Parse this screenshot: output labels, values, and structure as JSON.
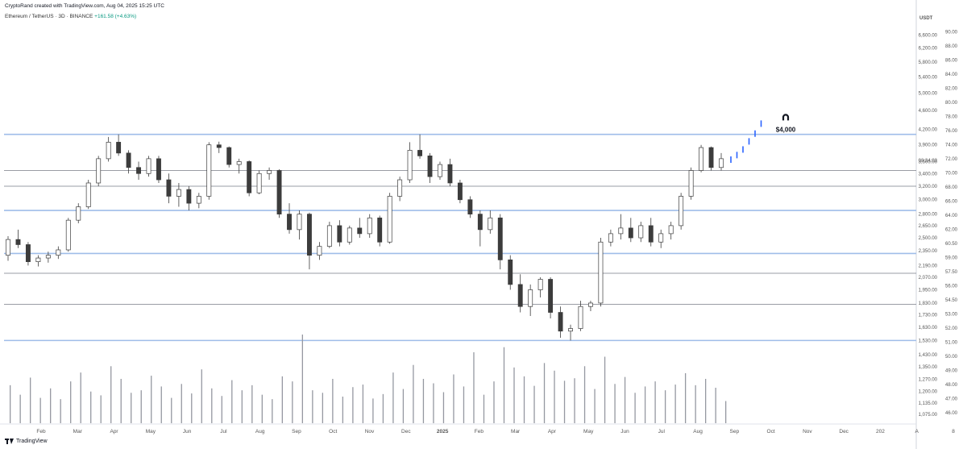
{
  "header": {
    "credit": "CryptoRand created with TradingView.com, Aug 04, 2025 15:25 UTC",
    "symbol": "Ethereum / TetherUS · 3D · BINANCE",
    "change": "+161.58 (+4.63%)"
  },
  "footer": {
    "brand": "TradingView"
  },
  "chart_data": {
    "type": "candlestick",
    "currency": "USDT",
    "price_axis": [
      "6,600.00",
      "6,200.00",
      "5,800.00",
      "5,400.00",
      "5,000.00",
      "4,600.00",
      "4,200.00",
      "3,900.00",
      "3,600.00",
      "3,400.00",
      "3,200.00",
      "3,000.00",
      "2,800.00",
      "2,650.00",
      "2,500.00",
      "2,350.00",
      "2,190.00",
      "2,070.00",
      "1,950.00",
      "1,830.00",
      "1,730.00",
      "1,630.00",
      "1,530.00",
      "1,430.00",
      "1,350.00",
      "1,270.00",
      "1,200.00",
      "1,135.00",
      "1,075.00"
    ],
    "right_axis": [
      "USDT",
      "90.00",
      "88.00",
      "86.00",
      "84.00",
      "82.00",
      "80.00",
      "78.00",
      "76.00",
      "74.00",
      "72.00",
      "70.00",
      "68.00",
      "66.00",
      "64.00",
      "62.00",
      "60.50",
      "59.00",
      "57.50",
      "56.00",
      "54.50",
      "53.00",
      "52.00",
      "51.00",
      "50.00",
      "49.00",
      "48.00",
      "47.00",
      "46.00"
    ],
    "price_label": "08:34:03",
    "time_axis": [
      "Feb",
      "Mar",
      "Apr",
      "May",
      "Jun",
      "Jul",
      "Aug",
      "Sep",
      "Oct",
      "Nov",
      "Dec",
      "2025",
      "Feb",
      "Mar",
      "Apr",
      "May",
      "Jun",
      "Jul",
      "Aug",
      "Sep",
      "Oct",
      "Nov",
      "Dec",
      "202",
      "A",
      "8"
    ],
    "horizontal_levels": [
      4100,
      3450,
      3200,
      2850,
      2320,
      2110,
      1820,
      1530
    ],
    "annotation": {
      "text": "$4,000",
      "target": 4300
    },
    "candles": [
      [
        2300,
        2520,
        2240,
        2480
      ],
      [
        2480,
        2600,
        2380,
        2420
      ],
      [
        2420,
        2450,
        2190,
        2230
      ],
      [
        2230,
        2300,
        2180,
        2270
      ],
      [
        2270,
        2340,
        2220,
        2300
      ],
      [
        2300,
        2400,
        2260,
        2360
      ],
      [
        2360,
        2750,
        2340,
        2720
      ],
      [
        2720,
        2950,
        2680,
        2900
      ],
      [
        2900,
        3300,
        2870,
        3250
      ],
      [
        3250,
        3700,
        3200,
        3650
      ],
      [
        3650,
        4050,
        3600,
        3950
      ],
      [
        3950,
        4100,
        3700,
        3750
      ],
      [
        3750,
        3800,
        3400,
        3500
      ],
      [
        3500,
        3600,
        3300,
        3400
      ],
      [
        3400,
        3700,
        3350,
        3650
      ],
      [
        3650,
        3700,
        3250,
        3300
      ],
      [
        3300,
        3400,
        2950,
        3050
      ],
      [
        3050,
        3250,
        2900,
        3150
      ],
      [
        3150,
        3200,
        2850,
        2950
      ],
      [
        2950,
        3100,
        2880,
        3050
      ],
      [
        3050,
        3950,
        3000,
        3900
      ],
      [
        3900,
        3960,
        3750,
        3850
      ],
      [
        3850,
        3870,
        3500,
        3550
      ],
      [
        3550,
        3650,
        3400,
        3600
      ],
      [
        3600,
        3620,
        3050,
        3100
      ],
      [
        3100,
        3450,
        3080,
        3400
      ],
      [
        3400,
        3500,
        3300,
        3450
      ],
      [
        3450,
        3470,
        2750,
        2800
      ],
      [
        2800,
        2950,
        2550,
        2600
      ],
      [
        2600,
        2850,
        2480,
        2800
      ],
      [
        2800,
        2820,
        2150,
        2300
      ],
      [
        2300,
        2450,
        2250,
        2400
      ],
      [
        2400,
        2700,
        2380,
        2650
      ],
      [
        2650,
        2720,
        2400,
        2450
      ],
      [
        2450,
        2650,
        2420,
        2620
      ],
      [
        2620,
        2750,
        2500,
        2550
      ],
      [
        2550,
        2800,
        2500,
        2750
      ],
      [
        2750,
        2780,
        2400,
        2450
      ],
      [
        2450,
        3100,
        2430,
        3050
      ],
      [
        3050,
        3350,
        2980,
        3300
      ],
      [
        3300,
        3950,
        3250,
        3800
      ],
      [
        3800,
        4100,
        3650,
        3700
      ],
      [
        3700,
        3750,
        3250,
        3350
      ],
      [
        3350,
        3600,
        3300,
        3550
      ],
      [
        3550,
        3650,
        3200,
        3250
      ],
      [
        3250,
        3300,
        2950,
        3000
      ],
      [
        3000,
        3050,
        2750,
        2800
      ],
      [
        2800,
        2850,
        2400,
        2600
      ],
      [
        2600,
        2850,
        2550,
        2750
      ],
      [
        2750,
        2800,
        2150,
        2250
      ],
      [
        2250,
        2300,
        1950,
        2000
      ],
      [
        2000,
        2100,
        1750,
        1800
      ],
      [
        1800,
        2000,
        1720,
        1950
      ],
      [
        1950,
        2070,
        1880,
        2050
      ],
      [
        2050,
        2070,
        1700,
        1750
      ],
      [
        1750,
        1800,
        1550,
        1600
      ],
      [
        1600,
        1650,
        1530,
        1620
      ],
      [
        1620,
        1850,
        1600,
        1800
      ],
      [
        1800,
        1850,
        1760,
        1830
      ],
      [
        1830,
        2500,
        1800,
        2450
      ],
      [
        2450,
        2600,
        2400,
        2550
      ],
      [
        2550,
        2800,
        2480,
        2620
      ],
      [
        2620,
        2750,
        2450,
        2500
      ],
      [
        2500,
        2700,
        2450,
        2650
      ],
      [
        2650,
        2750,
        2400,
        2450
      ],
      [
        2450,
        2600,
        2380,
        2550
      ],
      [
        2550,
        2700,
        2480,
        2650
      ],
      [
        2650,
        3100,
        2600,
        3050
      ],
      [
        3050,
        3500,
        3000,
        3450
      ],
      [
        3450,
        3900,
        3420,
        3850
      ],
      [
        3850,
        3870,
        3450,
        3500
      ],
      [
        3500,
        3750,
        3450,
        3650
      ]
    ],
    "projection": [
      3620,
      3700,
      3800,
      3950,
      4100,
      4300
    ],
    "volume": [
      60,
      45,
      72,
      40,
      55,
      38,
      66,
      80,
      50,
      44,
      90,
      70,
      48,
      52,
      75,
      58,
      40,
      62,
      47,
      85,
      55,
      43,
      68,
      52,
      60,
      45,
      38,
      74,
      66,
      140,
      52,
      48,
      70,
      42,
      57,
      61,
      39,
      46,
      80,
      54,
      92,
      70,
      63,
      49,
      77,
      58,
      112,
      45,
      66,
      120,
      88,
      74,
      59,
      95,
      83,
      67,
      71,
      90,
      54,
      105,
      62,
      73,
      48,
      58,
      66,
      52,
      61,
      79,
      60,
      70,
      56,
      35
    ],
    "ylim": [
      1030,
      7000
    ]
  }
}
